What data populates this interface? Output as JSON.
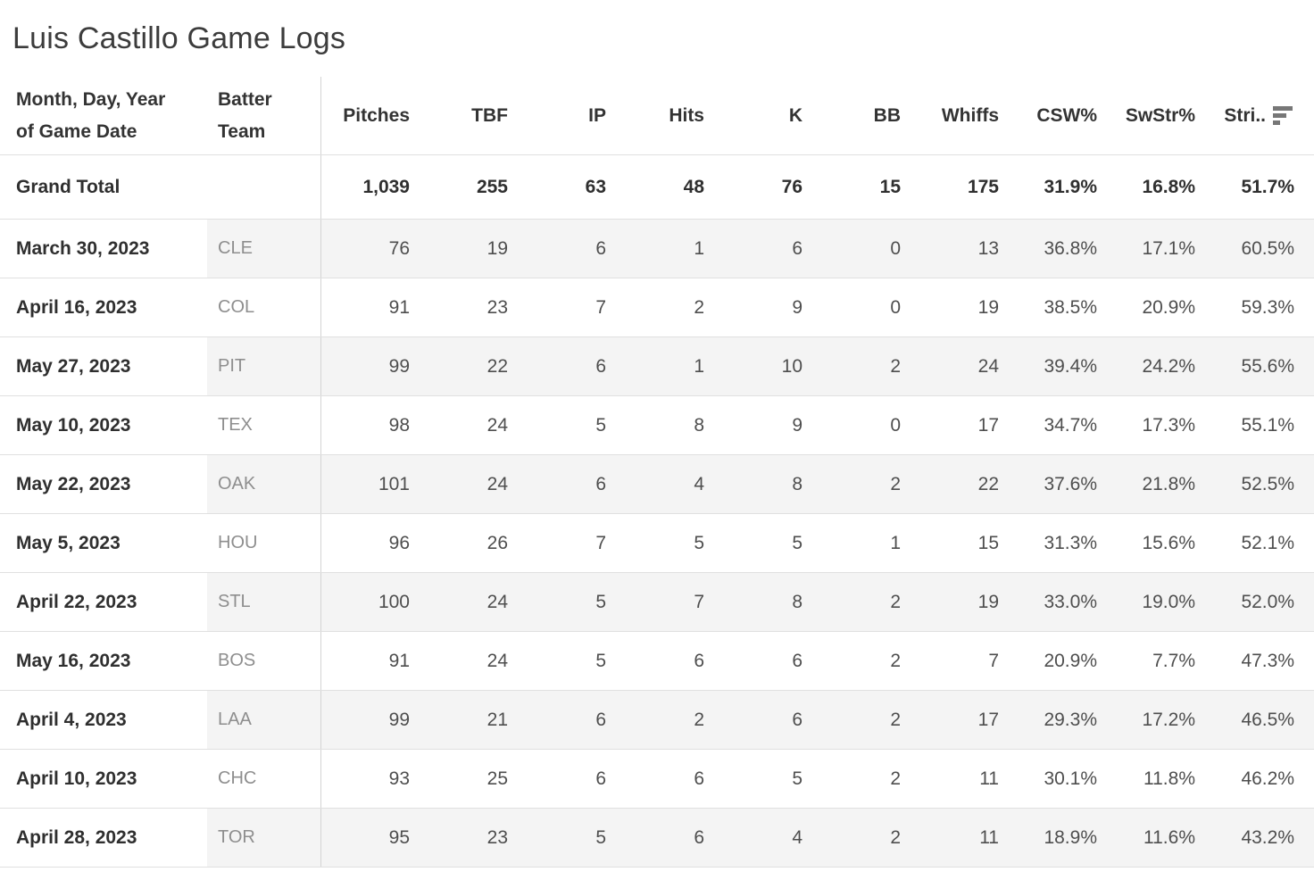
{
  "title": "Luis Castillo Game Logs",
  "table": {
    "columns": [
      {
        "label": "Month, Day, Year of Game Date",
        "align": "left"
      },
      {
        "label": "Batter Team",
        "align": "left"
      },
      {
        "label": "Pitches",
        "align": "right"
      },
      {
        "label": "TBF",
        "align": "right"
      },
      {
        "label": "IP",
        "align": "right"
      },
      {
        "label": "Hits",
        "align": "right"
      },
      {
        "label": "K",
        "align": "right"
      },
      {
        "label": "BB",
        "align": "right"
      },
      {
        "label": "Whiffs",
        "align": "right"
      },
      {
        "label": "CSW%",
        "align": "right"
      },
      {
        "label": "SwStr%",
        "align": "right"
      },
      {
        "label": "Stri..",
        "align": "right",
        "sort": "descending",
        "sort_icon": "sort-descending-icon"
      }
    ],
    "grand_total": {
      "label": "Grand Total",
      "values": [
        "1,039",
        "255",
        "63",
        "48",
        "76",
        "15",
        "175",
        "31.9%",
        "16.8%",
        "51.7%"
      ]
    },
    "rows": [
      {
        "date": "March 30, 2023",
        "team": "CLE",
        "values": [
          "76",
          "19",
          "6",
          "1",
          "6",
          "0",
          "13",
          "36.8%",
          "17.1%",
          "60.5%"
        ]
      },
      {
        "date": "April 16, 2023",
        "team": "COL",
        "values": [
          "91",
          "23",
          "7",
          "2",
          "9",
          "0",
          "19",
          "38.5%",
          "20.9%",
          "59.3%"
        ]
      },
      {
        "date": "May 27, 2023",
        "team": "PIT",
        "values": [
          "99",
          "22",
          "6",
          "1",
          "10",
          "2",
          "24",
          "39.4%",
          "24.2%",
          "55.6%"
        ]
      },
      {
        "date": "May 10, 2023",
        "team": "TEX",
        "values": [
          "98",
          "24",
          "5",
          "8",
          "9",
          "0",
          "17",
          "34.7%",
          "17.3%",
          "55.1%"
        ]
      },
      {
        "date": "May 22, 2023",
        "team": "OAK",
        "values": [
          "101",
          "24",
          "6",
          "4",
          "8",
          "2",
          "22",
          "37.6%",
          "21.8%",
          "52.5%"
        ]
      },
      {
        "date": "May 5, 2023",
        "team": "HOU",
        "values": [
          "96",
          "26",
          "7",
          "5",
          "5",
          "1",
          "15",
          "31.3%",
          "15.6%",
          "52.1%"
        ]
      },
      {
        "date": "April 22, 2023",
        "team": "STL",
        "values": [
          "100",
          "24",
          "5",
          "7",
          "8",
          "2",
          "19",
          "33.0%",
          "19.0%",
          "52.0%"
        ]
      },
      {
        "date": "May 16, 2023",
        "team": "BOS",
        "values": [
          "91",
          "24",
          "5",
          "6",
          "6",
          "2",
          "7",
          "20.9%",
          "7.7%",
          "47.3%"
        ]
      },
      {
        "date": "April 4, 2023",
        "team": "LAA",
        "values": [
          "99",
          "21",
          "6",
          "2",
          "6",
          "2",
          "17",
          "29.3%",
          "17.2%",
          "46.5%"
        ]
      },
      {
        "date": "April 10, 2023",
        "team": "CHC",
        "values": [
          "93",
          "25",
          "6",
          "6",
          "5",
          "2",
          "11",
          "30.1%",
          "11.8%",
          "46.2%"
        ]
      },
      {
        "date": "April 28, 2023",
        "team": "TOR",
        "values": [
          "95",
          "23",
          "5",
          "6",
          "4",
          "2",
          "11",
          "18.9%",
          "11.6%",
          "43.2%"
        ]
      }
    ]
  },
  "colors": {
    "row_band": "#f4f4f4",
    "grid_line": "#e0e0e0",
    "column_divider": "#d4d4d4",
    "header_text": "#333333",
    "date_text": "#2f2f2f",
    "team_text": "#8e8e8e",
    "value_text": "#4e4e4e",
    "sort_icon": "#777777"
  }
}
